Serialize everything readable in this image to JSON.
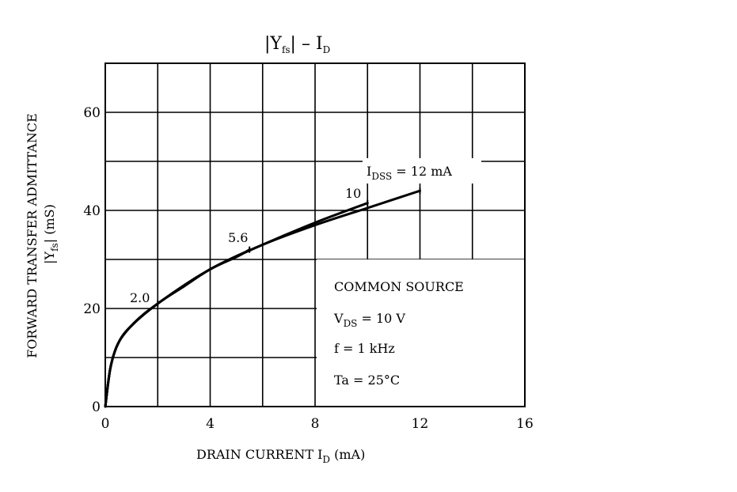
{
  "chart_data": {
    "type": "line",
    "title": {
      "main": "|Y",
      "main_sub": "fs",
      "main_mid": "| – I",
      "main_sub2": "D"
    },
    "xlabel": {
      "main": "DRAIN CURRENT  I",
      "sub": "D",
      "tail": "  (mA)"
    },
    "ylabel": {
      "line1": "FORWARD TRANSFER ADMITTANCE",
      "line2_a": "|Y",
      "line2_sub": "fs",
      "line2_b": "|   (mS)"
    },
    "xlim": [
      0,
      16
    ],
    "ylim": [
      0,
      70
    ],
    "x_ticks": [
      "0",
      "4",
      "8",
      "12",
      "16"
    ],
    "x_tick_values": [
      0,
      4,
      8,
      12,
      16
    ],
    "y_ticks": [
      "0",
      "20",
      "40",
      "60"
    ],
    "y_tick_values": [
      0,
      20,
      40,
      60
    ],
    "grid": true,
    "series": [
      {
        "name": "2.0",
        "x": [
          0,
          0.2,
          0.5,
          1.0,
          1.5,
          2.0
        ],
        "y": [
          0,
          8,
          13,
          16.5,
          19,
          21
        ]
      },
      {
        "name": "5.6",
        "x": [
          0,
          0.2,
          0.5,
          1.0,
          2.0,
          3.0,
          4.0,
          5.0,
          5.5
        ],
        "y": [
          0,
          8,
          13,
          16.5,
          21,
          24.5,
          28,
          30.5,
          32
        ]
      },
      {
        "name": "10",
        "x": [
          0,
          0.2,
          0.5,
          1.0,
          2.0,
          4.0,
          6.0,
          8.0,
          10.0
        ],
        "y": [
          0,
          8,
          13,
          16.5,
          21,
          28,
          33,
          37.5,
          41.5
        ]
      },
      {
        "name": "12",
        "x": [
          0,
          0.2,
          0.5,
          1.0,
          2.0,
          4.0,
          6.0,
          8.0,
          10.0,
          12.0
        ],
        "y": [
          0,
          8,
          13,
          16.5,
          21,
          28,
          33,
          37,
          40.5,
          44
        ]
      }
    ],
    "series_labels": [
      {
        "text": "2.0"
      },
      {
        "text": "5.6"
      },
      {
        "text": "10"
      },
      {
        "text_a": "I",
        "text_sub": "DSS",
        "text_b": " = 12 mA"
      }
    ],
    "annotation": {
      "line1": "COMMON SOURCE",
      "line2_a": "V",
      "line2_sub": "DS",
      "line2_b": " = 10 V",
      "line3": "f = 1 kHz",
      "line4": "Ta = 25°C"
    }
  }
}
